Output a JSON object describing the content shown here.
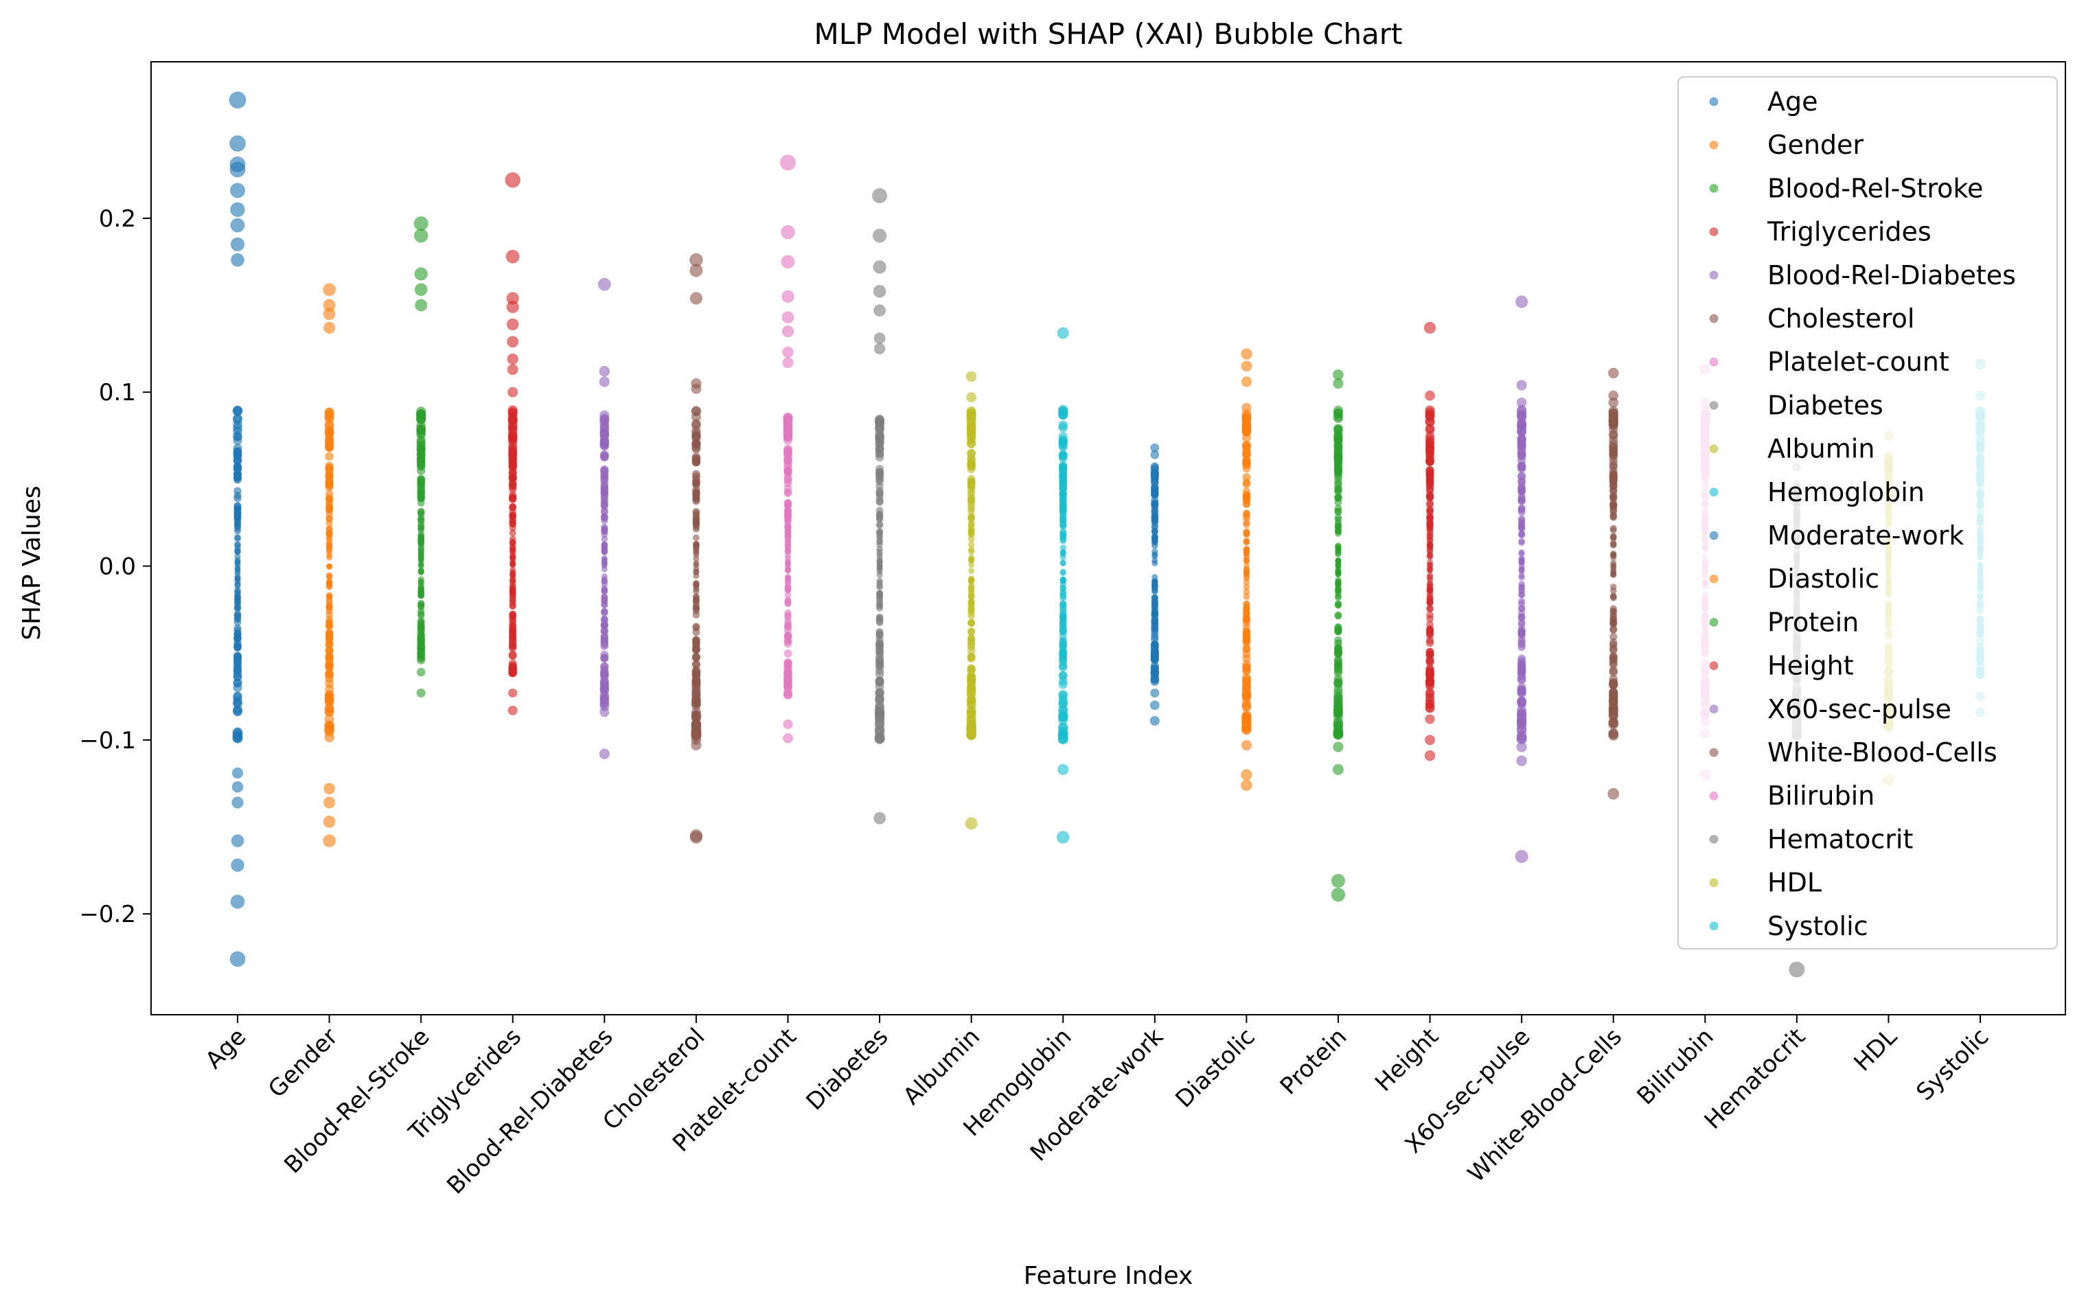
{
  "chart_data": {
    "type": "scatter",
    "title": "MLP Model with SHAP (XAI) Bubble Chart",
    "xlabel": "Feature Index",
    "ylabel": "SHAP Values",
    "ylim": [
      -0.258,
      0.29
    ],
    "yticks": [
      -0.2,
      -0.1,
      0.0,
      0.1,
      0.2
    ],
    "ytick_labels": [
      "−0.2",
      "−0.1",
      "0.0",
      "0.1",
      "0.2"
    ],
    "grid": false,
    "legend_position": "top-right",
    "categories": [
      "Age",
      "Gender",
      "Blood-Rel-Stroke",
      "Triglycerides",
      "Blood-Rel-Diabetes",
      "Cholesterol",
      "Platelet-count",
      "Diabetes",
      "Albumin",
      "Hemoglobin",
      "Moderate-work",
      "Diastolic",
      "Protein",
      "Height",
      "X60-sec-pulse",
      "White-Blood-Cells",
      "Bilirubin",
      "Hematocrit",
      "HDL",
      "Systolic"
    ],
    "series": [
      {
        "name": "Age",
        "color": "#1f77b4",
        "min": -0.226,
        "max": 0.268,
        "outliers": [
          0.268,
          0.243,
          0.231,
          0.228,
          0.216,
          0.205,
          0.196,
          0.185,
          0.176,
          -0.119,
          -0.127,
          -0.136,
          -0.158,
          -0.172,
          -0.193,
          -0.226
        ]
      },
      {
        "name": "Gender",
        "color": "#ff7f0e",
        "min": -0.158,
        "max": 0.159,
        "outliers": [
          0.159,
          0.15,
          0.145,
          0.137,
          -0.128,
          -0.136,
          -0.147,
          -0.158
        ]
      },
      {
        "name": "Blood-Rel-Stroke",
        "color": "#2ca02c",
        "min": -0.073,
        "max": 0.197,
        "outliers": [
          0.197,
          0.19,
          0.168,
          0.159,
          0.15,
          -0.061,
          -0.073
        ]
      },
      {
        "name": "Triglycerides",
        "color": "#d62728",
        "min": -0.083,
        "max": 0.222,
        "outliers": [
          0.222,
          0.178,
          0.154,
          0.149,
          0.139,
          0.129,
          0.119,
          0.113,
          0.1,
          -0.073,
          -0.083
        ]
      },
      {
        "name": "Blood-Rel-Diabetes",
        "color": "#9467bd",
        "min": -0.108,
        "max": 0.162,
        "outliers": [
          0.162,
          0.112,
          0.106,
          -0.06,
          -0.069,
          -0.077,
          -0.084,
          -0.108
        ]
      },
      {
        "name": "Cholesterol",
        "color": "#8c564b",
        "min": -0.156,
        "max": 0.176,
        "outliers": [
          0.176,
          0.17,
          0.154,
          0.105,
          0.102,
          0.089,
          -0.07,
          -0.074,
          -0.091,
          -0.096,
          -0.103,
          -0.155,
          -0.156
        ]
      },
      {
        "name": "Platelet-count",
        "color": "#e377c2",
        "min": -0.099,
        "max": 0.232,
        "outliers": [
          0.232,
          0.192,
          0.175,
          0.155,
          0.143,
          0.135,
          0.123,
          0.117,
          -0.062,
          -0.074,
          -0.091,
          -0.099
        ]
      },
      {
        "name": "Diabetes",
        "color": "#7f7f7f",
        "min": -0.145,
        "max": 0.213,
        "outliers": [
          0.213,
          0.19,
          0.172,
          0.158,
          0.147,
          0.131,
          0.125,
          -0.048,
          -0.06,
          -0.066,
          -0.082,
          -0.094,
          -0.145
        ]
      },
      {
        "name": "Albumin",
        "color": "#bcbd22",
        "min": -0.148,
        "max": 0.109,
        "outliers": [
          0.109,
          0.097,
          0.088,
          0.081,
          0.074,
          -0.085,
          -0.097,
          -0.148
        ]
      },
      {
        "name": "Hemoglobin",
        "color": "#17becf",
        "min": -0.156,
        "max": 0.134,
        "outliers": [
          0.134,
          0.087,
          0.081,
          0.071,
          0.063,
          -0.077,
          -0.083,
          -0.093,
          -0.117,
          -0.156
        ]
      },
      {
        "name": "Moderate-work",
        "color": "#1f77b4",
        "min": -0.089,
        "max": 0.068,
        "outliers": [
          0.068,
          0.064,
          -0.073,
          -0.08,
          -0.089
        ]
      },
      {
        "name": "Diastolic",
        "color": "#ff7f0e",
        "min": -0.126,
        "max": 0.122,
        "outliers": [
          0.122,
          0.115,
          0.106,
          0.091,
          0.085,
          0.065,
          -0.074,
          -0.103,
          -0.12,
          -0.126
        ]
      },
      {
        "name": "Protein",
        "color": "#2ca02c",
        "min": -0.189,
        "max": 0.11,
        "outliers": [
          0.11,
          0.105,
          0.078,
          0.073,
          0.062,
          -0.075,
          -0.083,
          -0.09,
          -0.097,
          -0.104,
          -0.117,
          -0.181,
          -0.189
        ]
      },
      {
        "name": "Height",
        "color": "#d62728",
        "min": -0.109,
        "max": 0.137,
        "outliers": [
          0.137,
          0.098,
          0.087,
          0.075,
          0.067,
          -0.068,
          -0.088,
          -0.1,
          -0.109
        ]
      },
      {
        "name": "X60-sec-pulse",
        "color": "#9467bd",
        "min": -0.167,
        "max": 0.152,
        "outliers": [
          0.152,
          0.104,
          0.094,
          0.086,
          0.07,
          -0.063,
          -0.072,
          -0.091,
          -0.104,
          -0.112,
          -0.167
        ]
      },
      {
        "name": "White-Blood-Cells",
        "color": "#8c564b",
        "min": -0.131,
        "max": 0.111,
        "outliers": [
          0.111,
          0.098,
          0.094,
          0.075,
          0.052,
          -0.06,
          -0.065,
          -0.131
        ]
      },
      {
        "name": "Bilirubin",
        "color": "#e377c2",
        "min": -0.12,
        "max": 0.113,
        "outliers": [
          0.113,
          0.094,
          0.082,
          0.076,
          -0.085,
          -0.096,
          -0.12
        ]
      },
      {
        "name": "Hematocrit",
        "color": "#7f7f7f",
        "min": -0.232,
        "max": 0.057,
        "outliers": [
          0.057,
          0.045,
          -0.075,
          -0.09,
          -0.232
        ]
      },
      {
        "name": "HDL",
        "color": "#bcbd22",
        "min": -0.123,
        "max": 0.075,
        "outliers": [
          0.075,
          0.06,
          -0.073,
          -0.093,
          -0.123
        ]
      },
      {
        "name": "Systolic",
        "color": "#17becf",
        "min": -0.084,
        "max": 0.116,
        "outliers": [
          0.116,
          0.098,
          0.068,
          -0.062,
          -0.075,
          -0.084
        ]
      }
    ]
  }
}
